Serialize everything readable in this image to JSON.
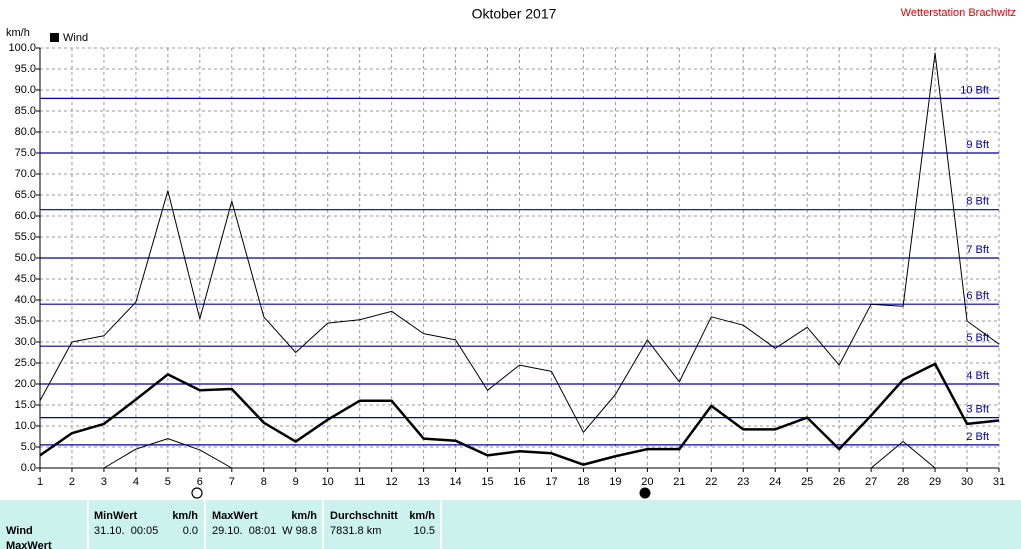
{
  "chart_data": {
    "type": "line",
    "title": "Oktober 2017",
    "station": "Wetterstation Brachwitz",
    "y_label": "km/h",
    "x": [
      1,
      2,
      3,
      4,
      5,
      6,
      7,
      8,
      9,
      10,
      11,
      12,
      13,
      14,
      15,
      16,
      17,
      18,
      19,
      20,
      21,
      22,
      23,
      24,
      25,
      26,
      27,
      28,
      29,
      30,
      31
    ],
    "xlim": [
      1,
      31
    ],
    "xticks": [
      1,
      2,
      3,
      4,
      5,
      6,
      7,
      8,
      9,
      10,
      11,
      12,
      13,
      14,
      15,
      16,
      17,
      18,
      19,
      20,
      21,
      22,
      23,
      24,
      25,
      26,
      27,
      28,
      29,
      30,
      31
    ],
    "ylim": [
      0,
      100
    ],
    "yticks": [
      {
        "value": 0,
        "label": "0.0"
      },
      {
        "value": 5,
        "label": "5.0"
      },
      {
        "value": 10,
        "label": "10.0"
      },
      {
        "value": 15,
        "label": "15.0"
      },
      {
        "value": 20,
        "label": "20.0"
      },
      {
        "value": 25,
        "label": "25.0"
      },
      {
        "value": 30,
        "label": "30.0"
      },
      {
        "value": 35,
        "label": "35.0"
      },
      {
        "value": 40,
        "label": "40.0"
      },
      {
        "value": 45,
        "label": "45.0"
      },
      {
        "value": 50,
        "label": "50.0"
      },
      {
        "value": 55,
        "label": "55.0"
      },
      {
        "value": 60,
        "label": "60.0"
      },
      {
        "value": 65,
        "label": "65.0"
      },
      {
        "value": 70,
        "label": "70.0"
      },
      {
        "value": 75,
        "label": "75.0"
      },
      {
        "value": 80,
        "label": "80.0"
      },
      {
        "value": 85,
        "label": "85.0"
      },
      {
        "value": 90,
        "label": "90.0"
      },
      {
        "value": 95,
        "label": "95.0"
      },
      {
        "value": 100,
        "label": "100.0"
      }
    ],
    "grid": true,
    "series": [
      {
        "name": "Wind",
        "color": "#000000",
        "values": [
          3,
          8.3,
          10.5,
          16.3,
          22.3,
          18.5,
          18.8,
          10.8,
          6.3,
          11.5,
          16,
          16,
          7,
          6.5,
          3,
          4,
          3.5,
          0.8,
          2.8,
          4.5,
          4.5,
          14.8,
          9.2,
          9.2,
          12,
          4.5,
          12.5,
          21,
          24.8,
          10.5,
          11.3
        ],
        "max_values": [
          16,
          30,
          31.5,
          39.5,
          66,
          35.5,
          63.5,
          36,
          27.5,
          34.5,
          35.3,
          37.3,
          32,
          30.5,
          18.5,
          24.5,
          23,
          8.5,
          17.5,
          30.5,
          20.5,
          36,
          34,
          28.5,
          33.5,
          24.5,
          39,
          38.5,
          98.8,
          35,
          29.5
        ],
        "min_values": [
          0,
          0,
          0,
          4.5,
          7,
          4.3,
          0,
          0,
          0,
          0,
          0,
          0,
          0,
          0,
          0,
          0,
          0,
          0,
          0,
          0,
          0,
          0,
          0,
          0,
          0,
          0,
          0,
          6.3,
          0,
          0,
          0
        ]
      }
    ],
    "reference_color": "#0000a0",
    "reference_lines": [
      {
        "value": 5.5,
        "label": "2 Bft"
      },
      {
        "value": 12,
        "label": "3 Bft"
      },
      {
        "value": 20,
        "label": "4 Bft"
      },
      {
        "value": 29,
        "label": "5 Bft"
      },
      {
        "value": 39,
        "label": "6 Bft"
      },
      {
        "value": 50,
        "label": "7 Bft"
      },
      {
        "value": 61.5,
        "label": "8 Bft"
      },
      {
        "value": 75,
        "label": "9 Bft"
      },
      {
        "value": 88,
        "label": "10 Bft"
      }
    ]
  },
  "table": {
    "row_labels": [
      "Wind",
      "MaxWert"
    ],
    "columns": [
      {
        "title": "MinWert",
        "unit": "km/h",
        "left": "31.10.  00:05",
        "right": "0.0"
      },
      {
        "title": "MaxWert",
        "unit": "km/h",
        "left": "29.10.  08:01",
        "right": "W 98.8"
      },
      {
        "title": "Durchschnitt",
        "unit": "km/h",
        "left": "7831.8 km",
        "right": "10.5"
      }
    ]
  }
}
